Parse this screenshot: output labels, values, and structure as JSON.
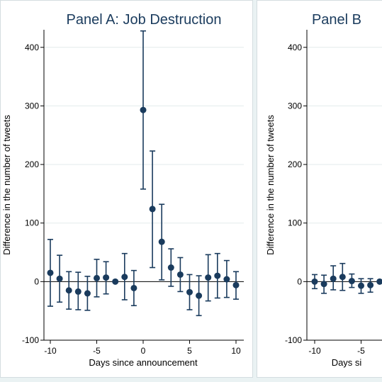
{
  "chart_data": [
    {
      "type": "scatter",
      "subtype": "point-with-error-bars",
      "title": "Panel A: Job Destruction",
      "xlabel": "Days since announcement",
      "ylabel": "Difference in the number of tweets",
      "xlim": [
        -10,
        10
      ],
      "ylim": [
        -100,
        430
      ],
      "xticks": [
        -10,
        -5,
        0,
        5,
        10
      ],
      "yticks": [
        -100,
        0,
        100,
        200,
        300,
        400
      ],
      "grid": true,
      "zero_line": true,
      "marker_color": "#1a3b5d",
      "points": [
        {
          "x": -10,
          "y": 15,
          "lo": -42,
          "hi": 72
        },
        {
          "x": -9,
          "y": 5,
          "lo": -35,
          "hi": 45
        },
        {
          "x": -8,
          "y": -15,
          "lo": -47,
          "hi": 17
        },
        {
          "x": -7,
          "y": -17,
          "lo": -48,
          "hi": 16
        },
        {
          "x": -6,
          "y": -20,
          "lo": -49,
          "hi": 9
        },
        {
          "x": -5,
          "y": 6,
          "lo": -26,
          "hi": 38
        },
        {
          "x": -4,
          "y": 7,
          "lo": -21,
          "hi": 34
        },
        {
          "x": -3,
          "y": 0,
          "lo": 0,
          "hi": 0
        },
        {
          "x": -2,
          "y": 8,
          "lo": -31,
          "hi": 48
        },
        {
          "x": -1,
          "y": -11,
          "lo": -41,
          "hi": 19
        },
        {
          "x": 0,
          "y": 293,
          "lo": 158,
          "hi": 428
        },
        {
          "x": 1,
          "y": 124,
          "lo": 24,
          "hi": 223
        },
        {
          "x": 2,
          "y": 68,
          "lo": 3,
          "hi": 132
        },
        {
          "x": 3,
          "y": 24,
          "lo": -8,
          "hi": 56
        },
        {
          "x": 4,
          "y": 12,
          "lo": -17,
          "hi": 41
        },
        {
          "x": 5,
          "y": -18,
          "lo": -48,
          "hi": 12
        },
        {
          "x": 6,
          "y": -24,
          "lo": -58,
          "hi": 10
        },
        {
          "x": 7,
          "y": 7,
          "lo": -33,
          "hi": 46
        },
        {
          "x": 8,
          "y": 10,
          "lo": -28,
          "hi": 48
        },
        {
          "x": 9,
          "y": 4,
          "lo": -27,
          "hi": 36
        },
        {
          "x": 10,
          "y": -6,
          "lo": -30,
          "hi": 17
        }
      ]
    },
    {
      "type": "scatter",
      "subtype": "point-with-error-bars",
      "title": "Panel B",
      "xlabel": "Days si",
      "ylabel": "Difference in the number of tweets",
      "xlim": [
        -10,
        10
      ],
      "ylim": [
        -100,
        430
      ],
      "xticks": [
        -10,
        -5
      ],
      "yticks": [
        -100,
        0,
        100,
        200,
        300,
        400
      ],
      "grid": true,
      "zero_line": true,
      "marker_color": "#1a3b5d",
      "points": [
        {
          "x": -10,
          "y": 0,
          "lo": -12,
          "hi": 12
        },
        {
          "x": -9,
          "y": -4,
          "lo": -20,
          "hi": 11
        },
        {
          "x": -8,
          "y": 5,
          "lo": -14,
          "hi": 27
        },
        {
          "x": -7,
          "y": 8,
          "lo": -15,
          "hi": 31
        },
        {
          "x": -6,
          "y": 1,
          "lo": -10,
          "hi": 13
        },
        {
          "x": -5,
          "y": -7,
          "lo": -20,
          "hi": 5
        },
        {
          "x": -4,
          "y": -6,
          "lo": -18,
          "hi": 5
        },
        {
          "x": -3,
          "y": 0,
          "lo": 0,
          "hi": 0
        }
      ]
    }
  ]
}
